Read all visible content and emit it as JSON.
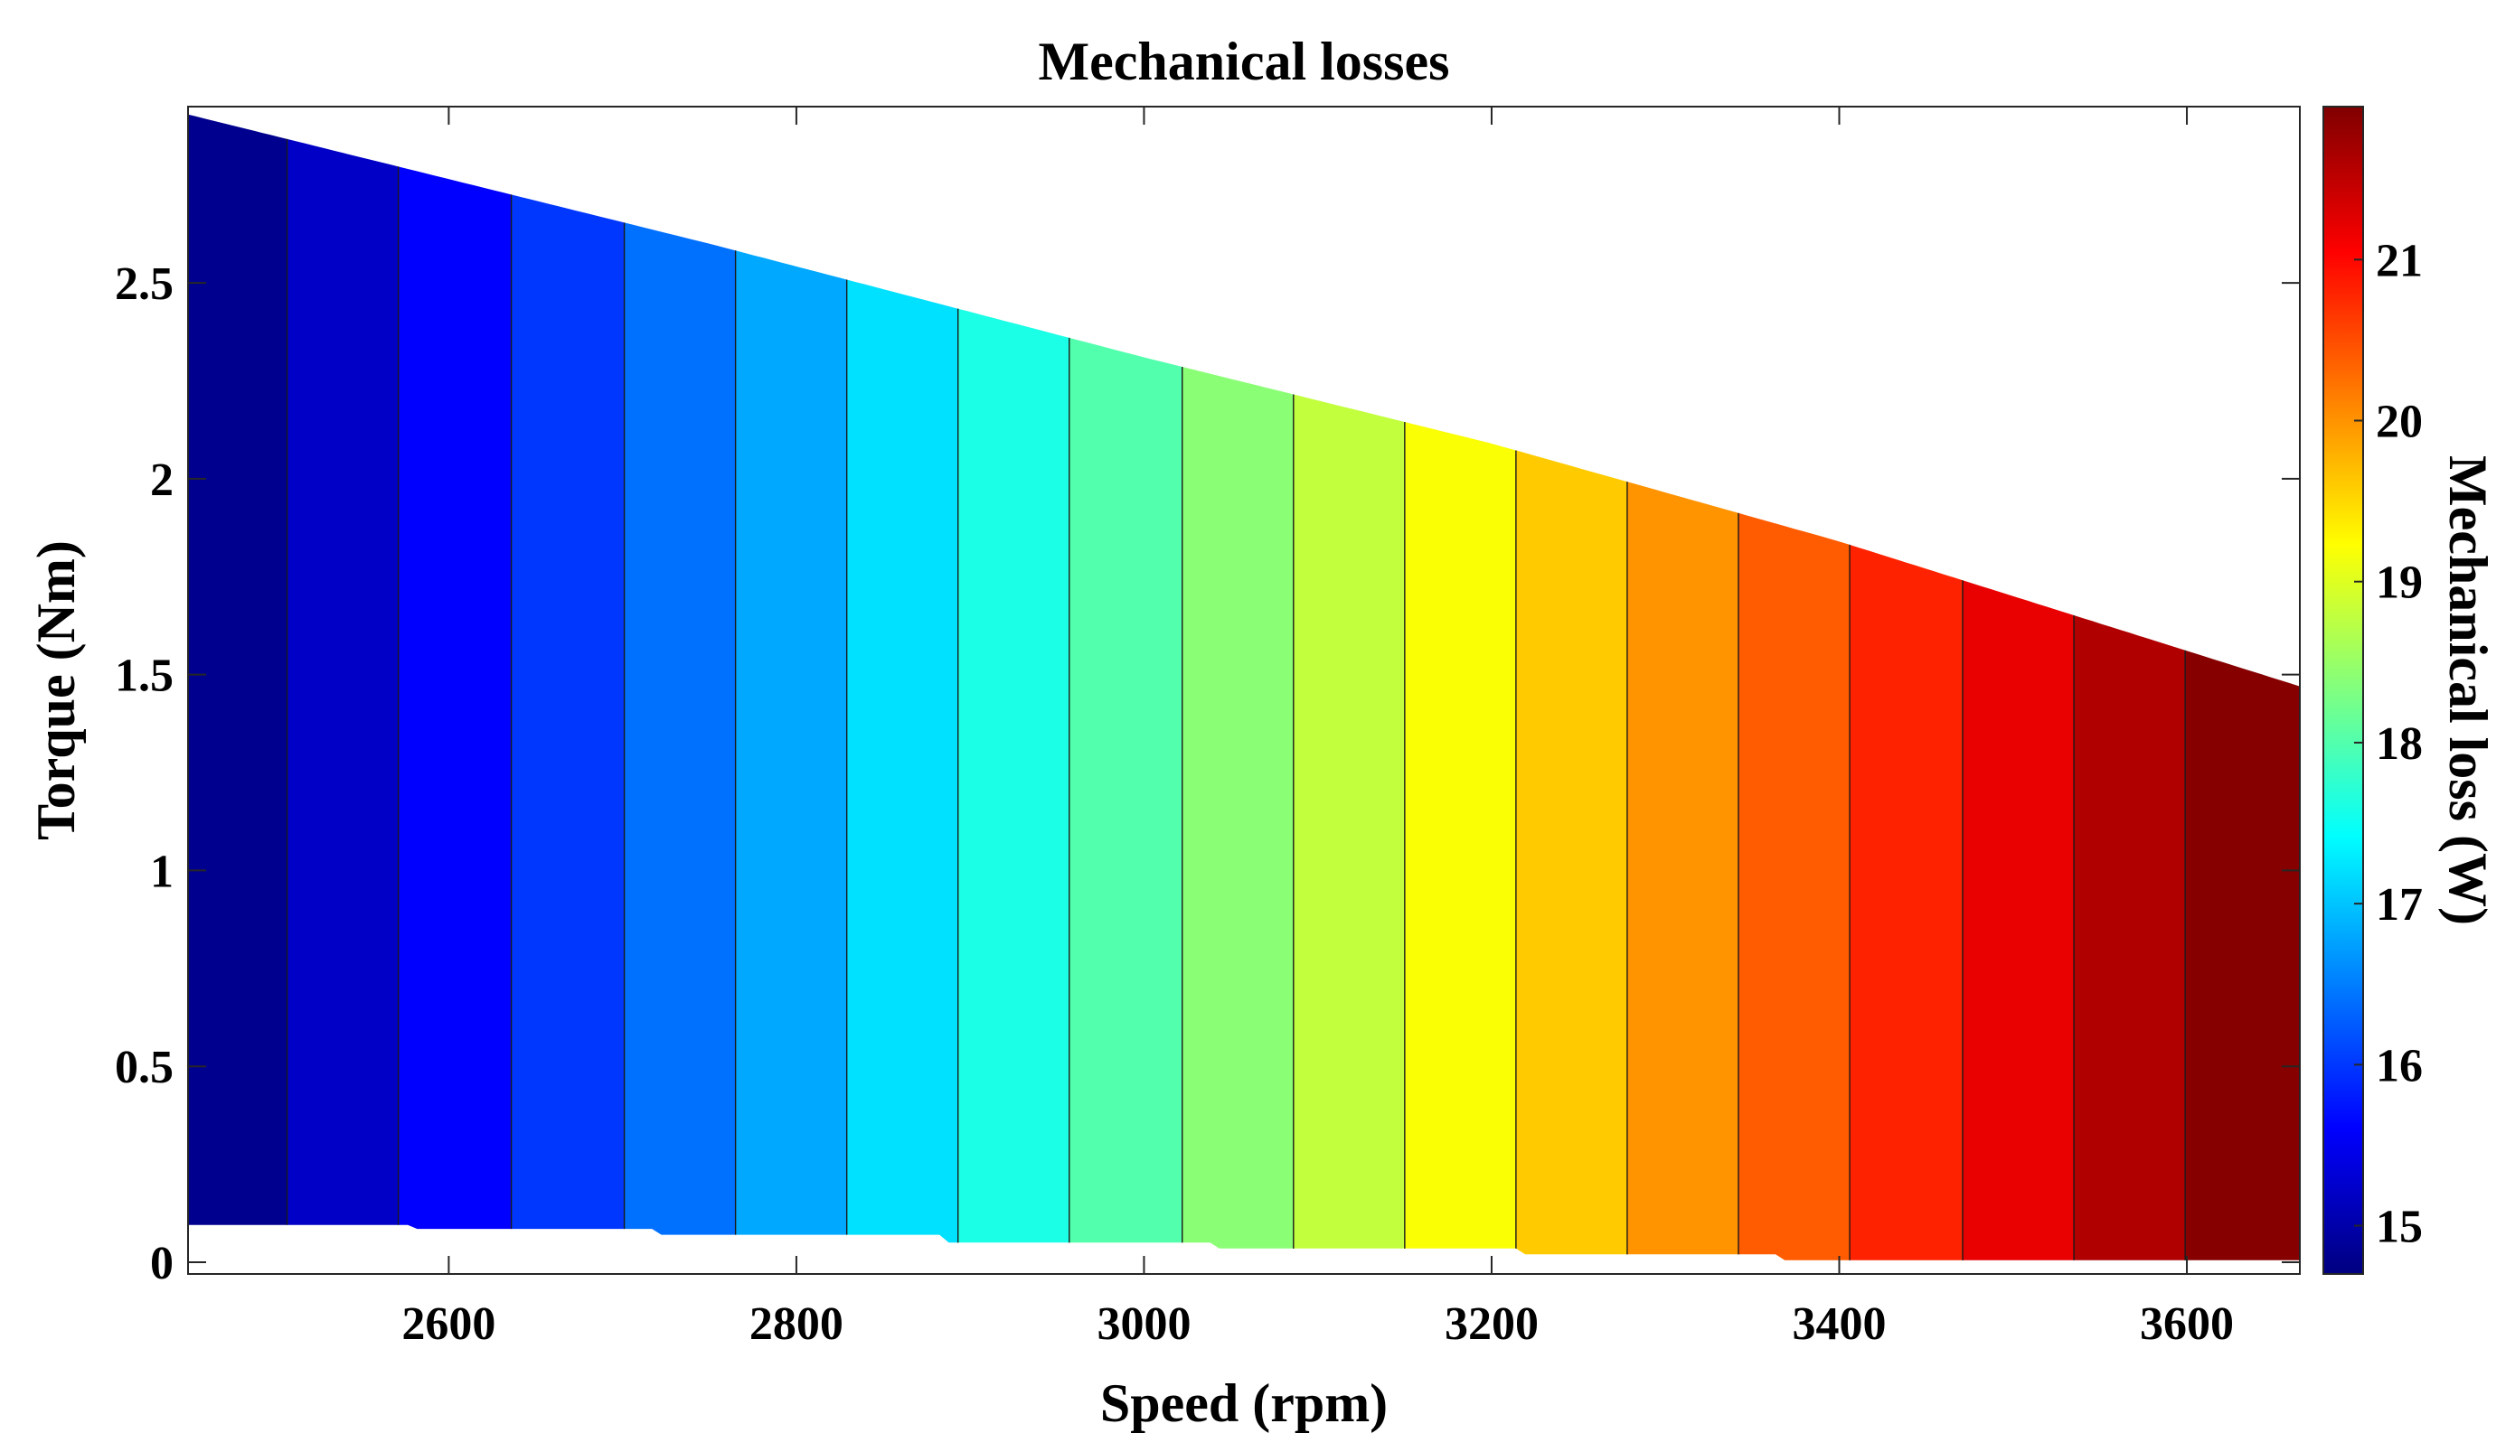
{
  "chart_data": {
    "type": "heatmap",
    "title": "Mechanical losses",
    "xlabel": "Speed (rpm)",
    "ylabel": "Torque (Nm)",
    "colorbar_label": "Mechanical loss (W)",
    "xlim": [
      2450,
      3665
    ],
    "ylim": [
      -0.03,
      2.95
    ],
    "clim": [
      14.7,
      21.95
    ],
    "grid": false,
    "colormap": "jet",
    "xticks": [
      2600,
      2800,
      3000,
      3200,
      3400,
      3600
    ],
    "xtick_labels": [
      "2600",
      "2800",
      "3000",
      "3200",
      "3400",
      "3600"
    ],
    "yticks": [
      0,
      0.5,
      1,
      1.5,
      2,
      2.5
    ],
    "ytick_labels": [
      "0",
      "0.5",
      "1",
      "1.5",
      "2",
      "2.5"
    ],
    "cticks": [
      15,
      16,
      17,
      18,
      19,
      20,
      21
    ],
    "ctick_labels": [
      "15",
      "16",
      "17",
      "18",
      "19",
      "20",
      "21"
    ],
    "band_edges_rpm": [
      2450,
      2507,
      2571,
      2636,
      2701,
      2765,
      2829,
      2893,
      2957,
      3022,
      3086,
      3150,
      3214,
      3278,
      3342,
      3406,
      3471,
      3535,
      3599,
      3665
    ],
    "band_levels_W": [
      14.8,
      15.2,
      15.6,
      16.0,
      16.4,
      16.8,
      17.2,
      17.6,
      18.0,
      18.4,
      18.8,
      19.2,
      19.6,
      20.0,
      20.4,
      20.8,
      21.2,
      21.6,
      21.9
    ],
    "upper_boundary": {
      "speed_rpm": [
        2450,
        2750,
        3000,
        3200,
        3400,
        3665
      ],
      "torque_Nm": [
        2.93,
        2.6,
        2.31,
        2.09,
        1.84,
        1.47
      ]
    },
    "lower_boundary": {
      "speed_rpm": [
        2450,
        2580,
        2581,
        2720,
        2721,
        2885,
        2886,
        3040,
        3041,
        3215,
        3216,
        3365,
        3366,
        3665
      ],
      "torque_Nm": [
        0.095,
        0.095,
        0.085,
        0.085,
        0.07,
        0.07,
        0.05,
        0.05,
        0.035,
        0.035,
        0.02,
        0.02,
        0.005,
        0.005
      ]
    }
  }
}
